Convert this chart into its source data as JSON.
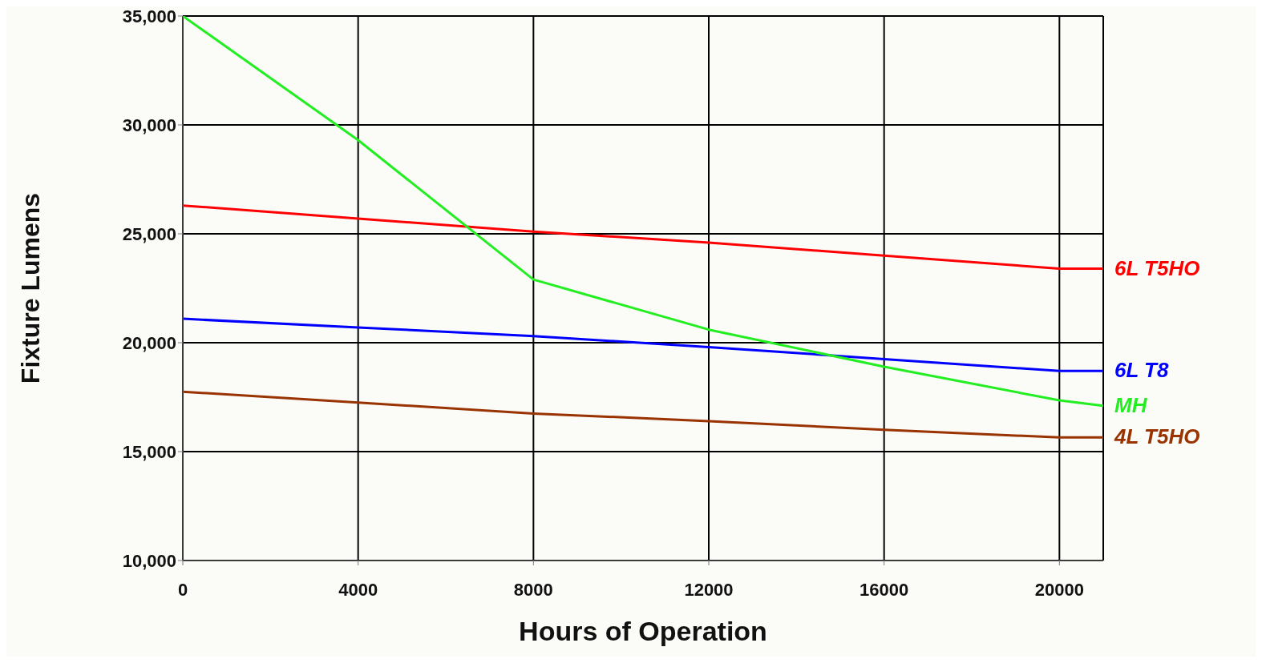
{
  "chart_data": {
    "type": "line",
    "xlabel": "Hours of Operation",
    "ylabel": "Fixture Lumens",
    "x": [
      0,
      4000,
      8000,
      12000,
      16000,
      20000,
      21000
    ],
    "series": [
      {
        "name": "6L T5HO",
        "color": "#ff0000",
        "values": [
          26300,
          25700,
          25100,
          24600,
          24000,
          23400,
          23400
        ]
      },
      {
        "name": "6L T8",
        "color": "#0000ff",
        "values": [
          21100,
          20700,
          20300,
          19800,
          19250,
          18700,
          18700
        ]
      },
      {
        "name": "MH",
        "color": "#22ee22",
        "values": [
          35000,
          29300,
          22900,
          20600,
          18900,
          17350,
          17100
        ]
      },
      {
        "name": "4L T5HO",
        "color": "#993300",
        "values": [
          17750,
          17250,
          16750,
          16400,
          16000,
          15650,
          15650
        ]
      }
    ],
    "xlim": [
      0,
      21000
    ],
    "xticks": [
      0,
      4000,
      8000,
      12000,
      16000,
      20000
    ],
    "ylim": [
      10000,
      35000
    ],
    "yticks": [
      {
        "value": 10000,
        "label": "10,000"
      },
      {
        "value": 15000,
        "label": "15,000"
      },
      {
        "value": 20000,
        "label": "20,000"
      },
      {
        "value": 25000,
        "label": "25,000"
      },
      {
        "value": 30000,
        "label": "30,000"
      },
      {
        "value": 35000,
        "label": "35,000"
      }
    ],
    "grid": true,
    "marker": "none",
    "line_style": "solid"
  }
}
